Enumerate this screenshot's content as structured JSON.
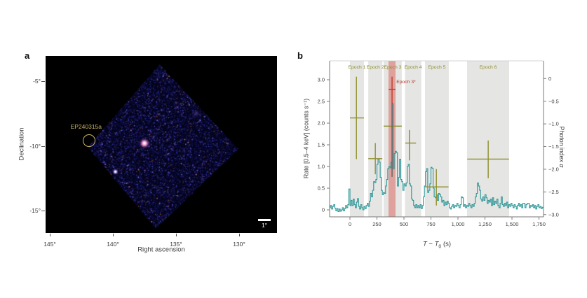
{
  "panel_a": {
    "label": "a",
    "ylabel": "Declination",
    "xlabel": "Right ascension",
    "y_tick_labels": [
      "-5°",
      "-10°",
      "-15°"
    ],
    "x_tick_labels": [
      "145°",
      "140°",
      "135°",
      "130°"
    ],
    "source_label": "EP240315a",
    "scale_bar_label": "1°"
  },
  "panel_b": {
    "label": "b",
    "ylabel_left": "Rate [0.5–4 keV] (counts s⁻¹)",
    "ylabel_right_text": "Photon index ",
    "ylabel_right_symbol": "α",
    "xlabel": {
      "t1": "T",
      "minus": " − ",
      "t2": "T",
      "sub": "0",
      "unit": " (s)"
    }
  },
  "chart_data": [
    {
      "type": "heatmap",
      "panel": "a",
      "description": "Wide-field X-ray sky image (diamond field of view) with detected sources",
      "xlabel": "Right ascension",
      "ylabel": "Declination",
      "x_ticks_deg": [
        145,
        140,
        135,
        130
      ],
      "y_ticks_deg": [
        -5,
        -10,
        -15
      ],
      "xlim_deg": [
        145.4,
        127.1
      ],
      "ylim_deg": [
        -16.7,
        -3.1
      ],
      "fov_corners_radec": [
        [
          136.3,
          -3.7
        ],
        [
          130.05,
          -10.25
        ],
        [
          136.6,
          -16.4
        ],
        [
          142.0,
          -10.1
        ]
      ],
      "sources": [
        {
          "name": "EP240315a",
          "ra": 141.9,
          "dec": -9.6,
          "circled": true,
          "brightness": "medium"
        },
        {
          "name": "bright field source",
          "ra": 137.5,
          "dec": -9.8,
          "circled": false,
          "brightness": "high"
        },
        {
          "name": "field source",
          "ra": 139.8,
          "dec": -12.0,
          "circled": false,
          "brightness": "medium"
        },
        {
          "name": "faint field source",
          "ra": 133.4,
          "dec": -7.5,
          "circled": false,
          "brightness": "low"
        }
      ],
      "scale_bar_deg": 1
    },
    {
      "type": "line",
      "panel": "b",
      "description": "0.5-4 keV light curve with per-epoch photon-index measurements",
      "xlabel": "T − T0 (s)",
      "ylabel": "Rate [0.5–4 keV] (counts s⁻¹)",
      "y2label": "Photon index α",
      "xlim": [
        -188,
        1792
      ],
      "ylim": [
        -0.161,
        3.435
      ],
      "y2lim": [
        -3.05,
        0.39
      ],
      "x_ticks": [
        0,
        250,
        500,
        750,
        1000,
        1250,
        1500,
        1750
      ],
      "x_tick_labels": [
        "0",
        "250",
        "500",
        "750",
        "1,000",
        "1,250",
        "1,500",
        "1,750"
      ],
      "y_ticks": [
        0,
        0.5,
        1.0,
        1.5,
        2.0,
        2.5,
        3.0
      ],
      "y_tick_labels": [
        "0",
        "0.5",
        "1.0",
        "1.5",
        "2.0",
        "2.5",
        "3.0"
      ],
      "y2_ticks": [
        0,
        -0.5,
        -1.0,
        -1.5,
        -2.0,
        -2.5,
        -3.0
      ],
      "y2_tick_labels": [
        "0",
        "−0.5",
        "−1.0",
        "−1.5",
        "−2.0",
        "−2.5",
        "−3.0"
      ],
      "colors": {
        "light_curve": "#2e9698",
        "epoch_cross": "#8e8e2b",
        "epoch_band": "#e5e5e3",
        "epoch3_star_band": "#d96a62",
        "epoch3_star_cross": "#c0392b",
        "overlap_bar": "#5f5f5f"
      },
      "epochs": [
        {
          "label": "Epoch 1",
          "t_range": [
            0,
            130
          ],
          "photon_index": -0.8,
          "cross": {
            "x": 60,
            "x_err": [
              0,
              130
            ],
            "rate": 2.12,
            "rate_lo": 1.17,
            "rate_hi": 3.07
          }
        },
        {
          "label": "Epoch 2",
          "t_range": [
            170,
            300
          ],
          "photon_index": -1.7,
          "cross": {
            "x": 235,
            "x_err": [
              170,
              300
            ],
            "rate": 1.18,
            "rate_lo": 0.82,
            "rate_hi": 1.54
          }
        },
        {
          "label": "Epoch 3",
          "t_range": [
            312,
            480
          ],
          "photon_index": -1.0,
          "cross": {
            "x": 390,
            "x_err": [
              312,
              480
            ],
            "rate": 1.93,
            "rate_lo": 0.76,
            "rate_hi": 2.46,
            "vert_overlap": true
          }
        },
        {
          "label": "Epoch 4",
          "t_range": [
            510,
            660
          ],
          "photon_index": -1.4,
          "cross": {
            "x": 550,
            "x_err": [
              512,
              612
            ],
            "rate": 1.54,
            "rate_lo": 1.14,
            "rate_hi": 1.84
          }
        },
        {
          "label": "Epoch 5",
          "t_range": [
            695,
            915
          ],
          "photon_index": -2.3,
          "cross": {
            "x": 800,
            "x_err": [
              697,
              913
            ],
            "rate": 0.53,
            "rate_lo": 0.1,
            "rate_hi": 0.94
          }
        },
        {
          "label": "Epoch 6",
          "t_range": [
            1084,
            1474
          ],
          "photon_index": -1.7,
          "cross": {
            "x": 1280,
            "x_err": [
              1086,
              1472
            ],
            "rate": 1.17,
            "rate_lo": 0.73,
            "rate_hi": 1.6
          }
        }
      ],
      "epoch3_star": {
        "label": "Epoch 3*",
        "t_range": [
          357,
          422
        ],
        "photon_index": -0.2,
        "cross": {
          "x": 390,
          "x_err": [
            357,
            422
          ],
          "rate": 2.78,
          "rate_lo": 2.46,
          "rate_hi": 3.07
        }
      },
      "light_curve": {
        "t_start": -190,
        "dt": 10,
        "rate": [
          0.05,
          0.1,
          0.02,
          0.08,
          0.12,
          0.04,
          -0.02,
          0.03,
          -0.04,
          0.02,
          -0.03,
          0,
          0.05,
          -0.02,
          0.03,
          0.1,
          0.05,
          0.12,
          0.48,
          0.1,
          0.22,
          0.1,
          0.25,
          0.12,
          0.05,
          0.18,
          0.26,
          0.08,
          0.02,
          0.12,
          0.05,
          0,
          0.08,
          0.03,
          0.1,
          0.15,
          0.08,
          0.2,
          0.38,
          0.3,
          0.45,
          0.65,
          0.63,
          0.7,
          1.05,
          1.17,
          1.1,
          0.75,
          0.45,
          0.35,
          0.4,
          0.38,
          0.55,
          0.7,
          0.95,
          1.0,
          0.97,
          1.1,
          2.45,
          0.95,
          1.3,
          1.35,
          1.32,
          0.55,
          0.75,
          1.17,
          0.7,
          0.65,
          0.45,
          0.6,
          0.55,
          0.62,
          1.0,
          1.05,
          0.6,
          0.55,
          0.25,
          0.22,
          0.1,
          0.05,
          0.12,
          0.05,
          0.1,
          0.05,
          0.12,
          0.03,
          0.1,
          0.3,
          0.55,
          0.88,
          0.95,
          0.4,
          0.45,
          0.6,
          0.98,
          0.96,
          0.5,
          0.3,
          0.28,
          0.35,
          0.22,
          0.38,
          0.35,
          0.3,
          0.18,
          0.22,
          0.1,
          0.18,
          0.12,
          0.2,
          0.15,
          0.05,
          0.02,
          0.08,
          0.12,
          0.05,
          0.1,
          0.08,
          0.15,
          0.1,
          0.05,
          0.12,
          0.3,
          0.28,
          0.08,
          0.12,
          0.05,
          0.1,
          0.08,
          0.15,
          0.1,
          0.05,
          0.12,
          0.08,
          0.15,
          0.3,
          0.38,
          0.62,
          0.55,
          0.45,
          0.25,
          0.2,
          0.3,
          0.22,
          0.35,
          0.28,
          0.15,
          0.22,
          0.18,
          0.25,
          0.1,
          0.28,
          0.12,
          0.2,
          0.15,
          0.25,
          0.1,
          0.05,
          0.15,
          0.3,
          0.12,
          0.08,
          0.15,
          0.1,
          0.18,
          0.05,
          0.12,
          0.08,
          0.15,
          0.1,
          0.05,
          0.12,
          0.08,
          0.02,
          0.1,
          0.15,
          0.08,
          0.12,
          0.05,
          0.15,
          0.15,
          0.05,
          0.12,
          0.15,
          0.15,
          0.05,
          0.1,
          0.08,
          0.12,
          0.05,
          0.1,
          0.02,
          0.08,
          0.12,
          0.05,
          0.08,
          0.03,
          0.06
        ]
      }
    }
  ]
}
